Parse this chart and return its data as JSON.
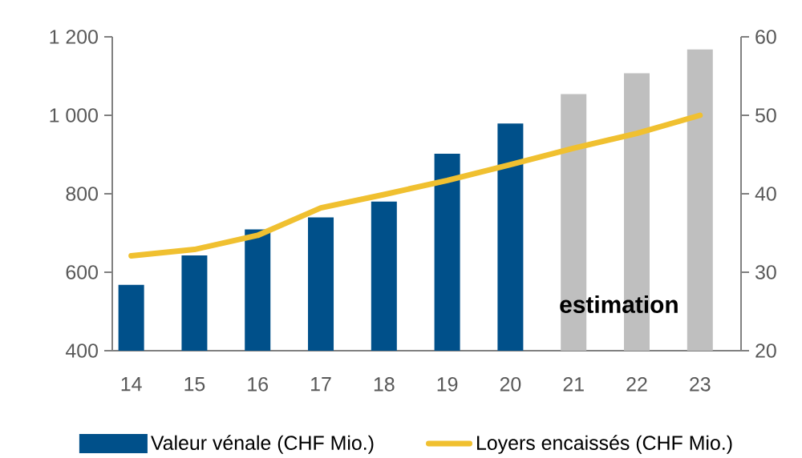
{
  "chart_data": {
    "type": "bar",
    "categories": [
      "14",
      "15",
      "16",
      "17",
      "18",
      "19",
      "20",
      "21",
      "22",
      "23"
    ],
    "series": [
      {
        "name": "Valeur vénale (CHF Mio.)",
        "color": "#00508a",
        "colors": [
          "#00508a",
          "#00508a",
          "#00508a",
          "#00508a",
          "#00508a",
          "#00508a",
          "#00508a",
          "#bfbfbf",
          "#bfbfbf",
          "#bfbfbf"
        ],
        "values": [
          568,
          643,
          709,
          740,
          780,
          902,
          979,
          1054,
          1107,
          1168
        ]
      },
      {
        "name": "Loyers encaissés (CHF Mio.)",
        "type": "line",
        "axis": "y2",
        "color": "#f0c030",
        "values": [
          32.1,
          32.9,
          34.7,
          38.2,
          39.9,
          41.7,
          43.7,
          45.8,
          47.7,
          50.0
        ]
      }
    ],
    "ylim": [
      400,
      1200
    ],
    "yticks": [
      {
        "value": 400,
        "label": "400"
      },
      {
        "value": 600,
        "label": "600"
      },
      {
        "value": 800,
        "label": "800"
      },
      {
        "value": 1000,
        "label": "1 000"
      },
      {
        "value": 1200,
        "label": "1 200"
      }
    ],
    "y2lim": [
      20,
      60
    ],
    "y2ticks": [
      20,
      30,
      40,
      50,
      60
    ],
    "annotations": [
      "estimation"
    ],
    "legend": "bottom"
  }
}
